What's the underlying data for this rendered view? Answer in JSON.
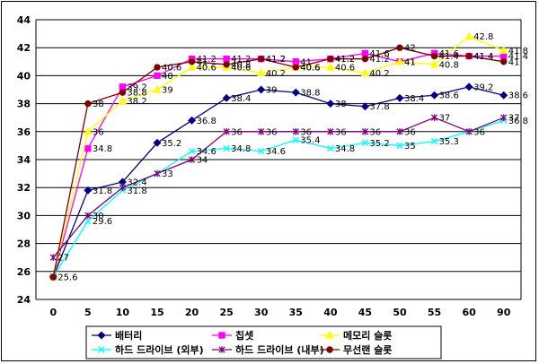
{
  "chart_data": {
    "type": "line",
    "title": "",
    "xlabel": "",
    "ylabel": "",
    "categories": [
      "0",
      "5",
      "10",
      "15",
      "20",
      "25",
      "30",
      "35",
      "40",
      "45",
      "50",
      "55",
      "60",
      "90"
    ],
    "ylim": [
      24,
      44
    ],
    "yticks": [
      24,
      26,
      28,
      30,
      32,
      34,
      36,
      38,
      40,
      42,
      44
    ],
    "grid": "horizontal",
    "legend_position": "bottom",
    "series": [
      {
        "name": "배터리",
        "color": "#000080",
        "marker": "diamond",
        "values": [
          25.6,
          31.8,
          32.4,
          35.2,
          36.8,
          38.4,
          39,
          38.8,
          38,
          37.8,
          38.4,
          38.6,
          39.2,
          38.6
        ],
        "labels": [
          "",
          "31.8",
          "32.4",
          "35.2",
          "36.8",
          "38.4",
          "39",
          "38.8",
          "38",
          "37.8",
          "38.4",
          "38.6",
          "39.2",
          "38.6"
        ]
      },
      {
        "name": "칩셋",
        "color": "#ff00ff",
        "marker": "square",
        "values": [
          25.6,
          34.8,
          39.2,
          40,
          41.2,
          41.2,
          41.2,
          41,
          41.2,
          41.6,
          41,
          41.6,
          41.4,
          41.4
        ],
        "labels": [
          "",
          "34.8",
          "39.2",
          "40",
          "41.2",
          "41.2",
          "41.2",
          "41",
          "41.2",
          "41.6",
          "41",
          "41.6",
          "41.4",
          "41.4"
        ]
      },
      {
        "name": "메모리 슬롯",
        "color": "#ffff00",
        "marker": "triangle",
        "values": [
          25.6,
          36,
          38.2,
          39,
          40.6,
          40.6,
          40.2,
          40.6,
          40.6,
          40.2,
          41,
          40.8,
          42.8,
          41.8
        ],
        "labels": [
          "",
          "36",
          "38.2",
          "39",
          "40.6",
          "40.6",
          "40.2",
          "40.6",
          "40.6",
          "40.2",
          "41",
          "40.8",
          "42.8",
          "41.8"
        ]
      },
      {
        "name": "하드 드라이브 (외부)",
        "color": "#00ffff",
        "marker": "x",
        "values": [
          25.6,
          29.6,
          31.8,
          33,
          34.6,
          34.8,
          34.6,
          35.4,
          34.8,
          35.2,
          35,
          35.3,
          36,
          36.8
        ],
        "labels": [
          "",
          "29.6",
          "31.8",
          "",
          "34.6",
          "34.8",
          "34.6",
          "35.4",
          "34.8",
          "35.2",
          "35",
          "35.3",
          "",
          "36.8"
        ]
      },
      {
        "name": "하드 드라이브 (내부)",
        "color": "#800080",
        "marker": "star",
        "values": [
          27,
          30,
          32,
          33,
          34,
          36,
          36,
          36,
          36,
          36,
          36,
          37,
          36,
          37
        ],
        "labels": [
          "27",
          "30",
          "",
          "33",
          "34",
          "36",
          "36",
          "36",
          "36",
          "36",
          "36",
          "37",
          "36",
          "37"
        ]
      },
      {
        "name": "무선랜 슬롯",
        "color": "#800000",
        "marker": "circle",
        "values": [
          25.6,
          38,
          38.8,
          40.6,
          41,
          40.8,
          41.2,
          40.6,
          41.2,
          41.2,
          42,
          41.4,
          41.4,
          41
        ],
        "labels": [
          "25.6",
          "38",
          "38.8",
          "40.6",
          "41",
          "40.8",
          "41.2",
          "40.6",
          "41.2",
          "41.2",
          "42",
          "41.4",
          "41.4",
          "41"
        ]
      }
    ]
  }
}
